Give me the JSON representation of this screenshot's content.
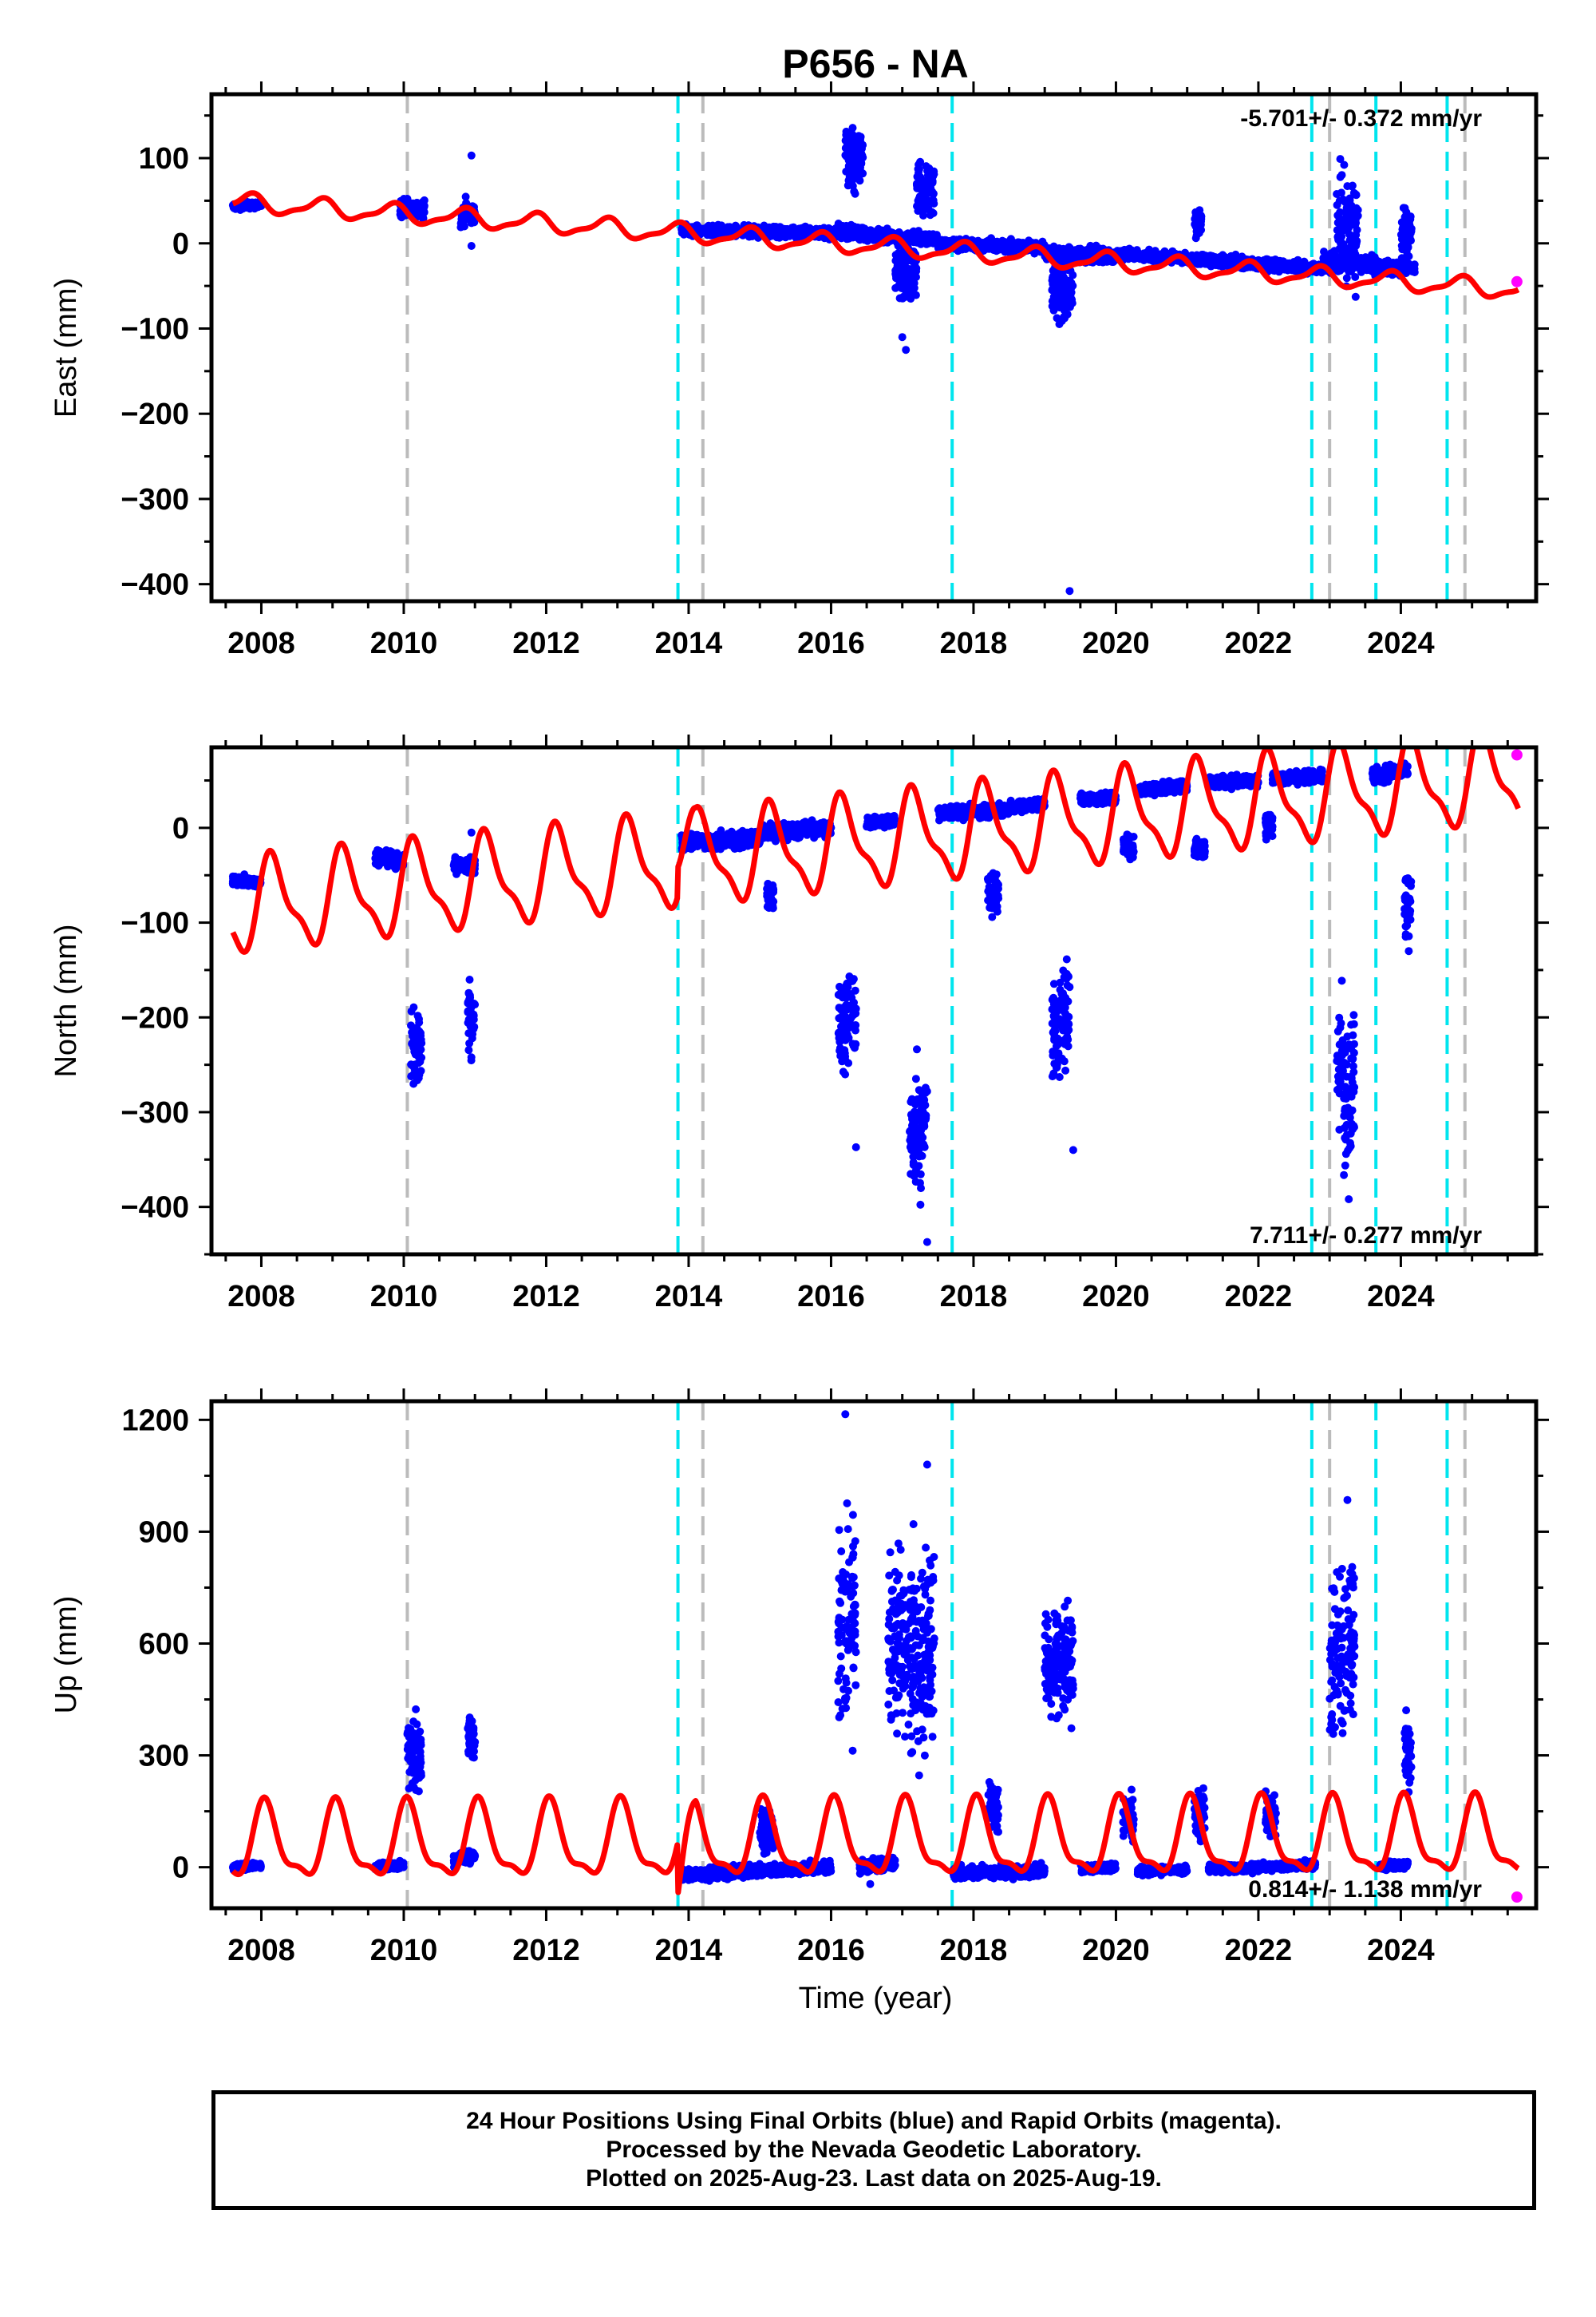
{
  "page_title": "P656 - NA",
  "x_axis_label": "Time (year)",
  "footer": {
    "line1": "24 Hour Positions Using Final Orbits (blue) and Rapid Orbits (magenta).",
    "line2": "Processed by the Nevada Geodetic Laboratory.",
    "line3": "Plotted on 2025-Aug-23. Last data on 2025-Aug-19."
  },
  "colors": {
    "final_orbits": "#0000ff",
    "rapid_orbits": "#ff00ff",
    "model": "#ff0000",
    "equipment_change": "#00e5ee",
    "earthquake": "#bbbbbb"
  },
  "chart_data": [
    {
      "type": "scatter",
      "title": "P656 - NA",
      "xlabel": "",
      "ylabel": "East (mm)",
      "xlim": [
        2007.3,
        2025.9
      ],
      "ylim": [
        -420,
        175
      ],
      "xticks": [
        2008,
        2010,
        2012,
        2014,
        2016,
        2018,
        2020,
        2022,
        2024
      ],
      "yticks": [
        -400,
        -300,
        -200,
        -100,
        0,
        100
      ],
      "ytick_labels": [
        "−400",
        "−300",
        "−200",
        "−100",
        "0",
        "100"
      ],
      "annotation": "-5.701+/- 0.372 mm/yr",
      "annotation_position": "top-right",
      "vertical_lines": {
        "cyan": [
          2013.85,
          2017.7,
          2022.75,
          2023.65,
          2024.65
        ],
        "gray": [
          2010.05,
          2014.2,
          2023.0,
          2024.9
        ]
      },
      "segments": [
        {
          "start": 2007.6,
          "end": 2008.0,
          "base": [
            43,
            46
          ],
          "spread": 4
        },
        {
          "start": 2009.95,
          "end": 2010.3,
          "base": [
            42,
            40
          ],
          "spread": 10
        },
        {
          "start": 2010.8,
          "end": 2011.0,
          "base": [
            35,
            34
          ],
          "spread": 15
        },
        {
          "start": 2013.9,
          "end": 2016.1,
          "base": [
            15,
            12
          ],
          "spread": 6
        },
        {
          "start": 2016.1,
          "end": 2016.5,
          "base": [
            14,
            12
          ],
          "spread": 8
        },
        {
          "start": 2016.5,
          "end": 2017.5,
          "base": [
            10,
            5
          ],
          "spread": 6
        },
        {
          "start": 2017.5,
          "end": 2019.0,
          "base": [
            0,
            -5
          ],
          "spread": 6
        },
        {
          "start": 2019.0,
          "end": 2020.0,
          "base": [
            -12,
            -15
          ],
          "spread": 8
        },
        {
          "start": 2020.0,
          "end": 2021.0,
          "base": [
            -13,
            -17
          ],
          "spread": 6
        },
        {
          "start": 2021.0,
          "end": 2022.9,
          "base": [
            -18,
            -30
          ],
          "spread": 6
        },
        {
          "start": 2022.9,
          "end": 2023.6,
          "base": [
            -20,
            -25
          ],
          "spread": 10
        },
        {
          "start": 2023.6,
          "end": 2024.2,
          "base": [
            -28,
            -30
          ],
          "spread": 8
        }
      ],
      "excursions": [
        {
          "start": 2016.2,
          "end": 2016.45,
          "offset": 90,
          "spread": 55
        },
        {
          "start": 2016.9,
          "end": 2017.2,
          "offset": -40,
          "spread": 60
        },
        {
          "start": 2017.2,
          "end": 2017.45,
          "offset": 60,
          "spread": 55
        },
        {
          "start": 2019.1,
          "end": 2019.4,
          "offset": -45,
          "spread": 50
        },
        {
          "start": 2021.1,
          "end": 2021.2,
          "offset": 40,
          "spread": 30
        },
        {
          "start": 2023.1,
          "end": 2023.4,
          "offset": 45,
          "spread": 110
        },
        {
          "start": 2024.0,
          "end": 2024.15,
          "offset": 40,
          "spread": 40
        }
      ],
      "outliers": [
        {
          "x": 2010.95,
          "y": 103
        },
        {
          "x": 2010.95,
          "y": -3
        },
        {
          "x": 2017.0,
          "y": -110
        },
        {
          "x": 2017.05,
          "y": -125
        },
        {
          "x": 2019.35,
          "y": -408
        }
      ],
      "model": {
        "start": 2007.6,
        "end": 2025.65,
        "intercept": 48,
        "slope": -5.701,
        "amplitude": 10,
        "phase": 2.6,
        "offsets": [
          {
            "at": 2013.85,
            "value": 0
          },
          {
            "at": 2017.7,
            "value": 0
          }
        ]
      },
      "rapid": [
        {
          "x": 2025.63,
          "y": -45
        }
      ]
    },
    {
      "type": "scatter",
      "xlabel": "",
      "ylabel": "North (mm)",
      "xlim": [
        2007.3,
        2025.9
      ],
      "ylim": [
        -450,
        85
      ],
      "xticks": [
        2008,
        2010,
        2012,
        2014,
        2016,
        2018,
        2020,
        2022,
        2024
      ],
      "yticks": [
        -400,
        -300,
        -200,
        -100,
        0
      ],
      "ytick_labels": [
        "−400",
        "−300",
        "−200",
        "−100",
        "0"
      ],
      "annotation": "7.711+/- 0.277 mm/yr",
      "annotation_position": "bottom-right",
      "vertical_lines": {
        "cyan": [
          2013.85,
          2017.7,
          2022.75,
          2023.65,
          2024.65
        ],
        "gray": [
          2010.05,
          2014.2,
          2023.0,
          2024.9
        ]
      },
      "segments": [
        {
          "start": 2007.6,
          "end": 2008.0,
          "base": [
            -55,
            -58
          ],
          "spread": 5
        },
        {
          "start": 2009.6,
          "end": 2010.0,
          "base": [
            -30,
            -35
          ],
          "spread": 8
        },
        {
          "start": 2010.7,
          "end": 2011.0,
          "base": [
            -38,
            -40
          ],
          "spread": 8
        },
        {
          "start": 2013.9,
          "end": 2015.0,
          "base": [
            -15,
            -12
          ],
          "spread": 8
        },
        {
          "start": 2015.0,
          "end": 2016.0,
          "base": [
            -5,
            0
          ],
          "spread": 8
        },
        {
          "start": 2016.5,
          "end": 2016.9,
          "base": [
            5,
            8
          ],
          "spread": 6
        },
        {
          "start": 2017.5,
          "end": 2018.5,
          "base": [
            15,
            20
          ],
          "spread": 6
        },
        {
          "start": 2018.5,
          "end": 2019.0,
          "base": [
            22,
            25
          ],
          "spread": 6
        },
        {
          "start": 2019.5,
          "end": 2020.0,
          "base": [
            30,
            32
          ],
          "spread": 6
        },
        {
          "start": 2020.3,
          "end": 2021.0,
          "base": [
            40,
            45
          ],
          "spread": 6
        },
        {
          "start": 2021.3,
          "end": 2022.0,
          "base": [
            48,
            50
          ],
          "spread": 6
        },
        {
          "start": 2022.2,
          "end": 2022.9,
          "base": [
            52,
            55
          ],
          "spread": 6
        },
        {
          "start": 2023.6,
          "end": 2024.1,
          "base": [
            55,
            60
          ],
          "spread": 8
        }
      ],
      "excursions": [
        {
          "start": 2010.1,
          "end": 2010.25,
          "offset": -200,
          "spread": 60
        },
        {
          "start": 2010.9,
          "end": 2011.0,
          "offset": -160,
          "spread": 70
        },
        {
          "start": 2015.1,
          "end": 2015.2,
          "offset": -70,
          "spread": 20
        },
        {
          "start": 2016.1,
          "end": 2016.35,
          "offset": -200,
          "spread": 80
        },
        {
          "start": 2017.1,
          "end": 2017.35,
          "offset": -330,
          "spread": 100
        },
        {
          "start": 2018.2,
          "end": 2018.35,
          "offset": -90,
          "spread": 40
        },
        {
          "start": 2019.1,
          "end": 2019.35,
          "offset": -230,
          "spread": 90
        },
        {
          "start": 2020.1,
          "end": 2020.25,
          "offset": -60,
          "spread": 20
        },
        {
          "start": 2021.1,
          "end": 2021.25,
          "offset": -70,
          "spread": 20
        },
        {
          "start": 2022.1,
          "end": 2022.2,
          "offset": -50,
          "spread": 20
        },
        {
          "start": 2023.1,
          "end": 2023.35,
          "offset": -300,
          "spread": 130
        },
        {
          "start": 2024.05,
          "end": 2024.15,
          "offset": -130,
          "spread": 60
        }
      ],
      "outliers": [
        {
          "x": 2016.35,
          "y": -337
        },
        {
          "x": 2017.35,
          "y": -437
        },
        {
          "x": 2019.4,
          "y": -340
        },
        {
          "x": 2010.95,
          "y": -5
        }
      ],
      "model": {
        "start": 2007.6,
        "end": 2025.65,
        "intercept": -85,
        "slope": 7.711,
        "amplitude": 45,
        "phase": 0.5,
        "offsets": [
          {
            "at": 2013.85,
            "value": 30
          },
          {
            "at": 2014.1,
            "value": 0
          }
        ]
      },
      "rapid": [
        {
          "x": 2025.63,
          "y": 77
        }
      ]
    },
    {
      "type": "scatter",
      "xlabel": "Time (year)",
      "ylabel": "Up (mm)",
      "xlim": [
        2007.3,
        2025.9
      ],
      "ylim": [
        -110,
        1250
      ],
      "xticks": [
        2008,
        2010,
        2012,
        2014,
        2016,
        2018,
        2020,
        2022,
        2024
      ],
      "yticks": [
        0,
        300,
        600,
        900,
        1200
      ],
      "ytick_labels": [
        "0",
        "300",
        "600",
        "900",
        "1200"
      ],
      "annotation": "0.814+/- 1.138 mm/yr",
      "annotation_position": "bottom-right",
      "vertical_lines": {
        "cyan": [
          2013.85,
          2017.7,
          2022.75,
          2023.65,
          2024.65
        ],
        "gray": [
          2010.05,
          2014.2,
          2023.0,
          2024.9
        ]
      },
      "segments": [
        {
          "start": 2007.6,
          "end": 2008.0,
          "base": [
            0,
            5
          ],
          "spread": 8
        },
        {
          "start": 2009.6,
          "end": 2010.0,
          "base": [
            0,
            5
          ],
          "spread": 10
        },
        {
          "start": 2010.7,
          "end": 2011.0,
          "base": [
            20,
            30
          ],
          "spread": 15
        },
        {
          "start": 2013.9,
          "end": 2016.0,
          "base": [
            -20,
            0
          ],
          "spread": 15
        },
        {
          "start": 2016.4,
          "end": 2016.9,
          "base": [
            0,
            10
          ],
          "spread": 15
        },
        {
          "start": 2017.7,
          "end": 2019.0,
          "base": [
            -15,
            -10
          ],
          "spread": 15
        },
        {
          "start": 2019.5,
          "end": 2020.0,
          "base": [
            -5,
            0
          ],
          "spread": 10
        },
        {
          "start": 2020.3,
          "end": 2021.0,
          "base": [
            -10,
            -5
          ],
          "spread": 10
        },
        {
          "start": 2021.3,
          "end": 2022.8,
          "base": [
            -5,
            5
          ],
          "spread": 10
        },
        {
          "start": 2023.7,
          "end": 2024.1,
          "base": [
            0,
            10
          ],
          "spread": 10
        }
      ],
      "excursions": [
        {
          "start": 2010.05,
          "end": 2010.25,
          "offset": 300,
          "spread": 150
        },
        {
          "start": 2010.9,
          "end": 2011.0,
          "offset": 320,
          "spread": 130
        },
        {
          "start": 2015.0,
          "end": 2015.2,
          "offset": 120,
          "spread": 100
        },
        {
          "start": 2016.1,
          "end": 2016.35,
          "offset": 650,
          "spread": 450
        },
        {
          "start": 2016.8,
          "end": 2017.45,
          "offset": 600,
          "spread": 420
        },
        {
          "start": 2018.2,
          "end": 2018.35,
          "offset": 180,
          "spread": 120
        },
        {
          "start": 2019.0,
          "end": 2019.4,
          "offset": 560,
          "spread": 200
        },
        {
          "start": 2020.1,
          "end": 2020.25,
          "offset": 140,
          "spread": 90
        },
        {
          "start": 2021.1,
          "end": 2021.25,
          "offset": 150,
          "spread": 100
        },
        {
          "start": 2022.1,
          "end": 2022.25,
          "offset": 140,
          "spread": 90
        },
        {
          "start": 2023.0,
          "end": 2023.35,
          "offset": 600,
          "spread": 350
        },
        {
          "start": 2024.05,
          "end": 2024.15,
          "offset": 300,
          "spread": 150
        }
      ],
      "outliers": [
        {
          "x": 2016.2,
          "y": 1215
        },
        {
          "x": 2017.35,
          "y": 1080
        },
        {
          "x": 2023.25,
          "y": 985
        },
        {
          "x": 2016.55,
          "y": -45
        }
      ],
      "model": {
        "start": 2007.6,
        "end": 2025.65,
        "intercept": 60,
        "slope": 0.814,
        "amplitude": 95,
        "phase": 1.2,
        "offsets": [
          {
            "at": 2013.85,
            "value": -140
          },
          {
            "at": 2014.1,
            "value": 0
          }
        ]
      },
      "rapid": [
        {
          "x": 2025.63,
          "y": -80
        }
      ]
    }
  ]
}
